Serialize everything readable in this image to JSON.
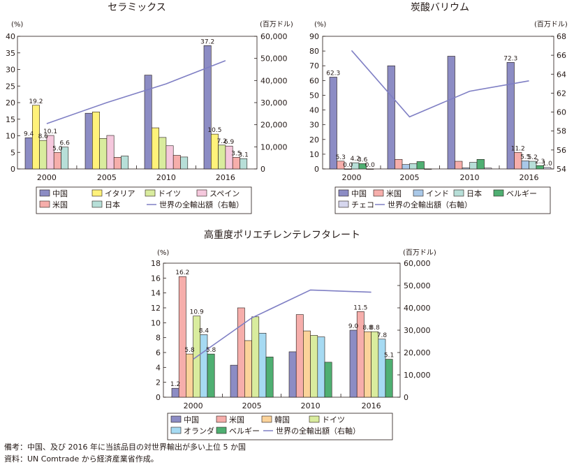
{
  "chart_data": [
    {
      "type": "bar",
      "title": "セラミックス",
      "ylabel_left": "(%)",
      "ylabel_right": "(百万ドル)",
      "ylim": [
        0,
        40
      ],
      "ylim_right": [
        0,
        60000
      ],
      "yticks": [
        "0",
        "5",
        "10",
        "15",
        "20",
        "25",
        "30",
        "35",
        "40"
      ],
      "yticks_right": [
        "0",
        "10,000",
        "20,000",
        "30,000",
        "40,000",
        "50,000",
        "60,000"
      ],
      "categories": [
        "2000",
        "2005",
        "2010",
        "2016"
      ],
      "series": [
        {
          "name": "中国",
          "color": "#8c8cc4",
          "values": [
            9.4,
            16.8,
            28.3,
            37.2
          ]
        },
        {
          "name": "イタリア",
          "color": "#fff27a",
          "values": [
            19.2,
            17.2,
            12.4,
            10.5
          ]
        },
        {
          "name": "ドイツ",
          "color": "#d9ec9e",
          "values": [
            8.6,
            9.2,
            9.5,
            7.2
          ]
        },
        {
          "name": "スペイン",
          "color": "#f5c8dd",
          "values": [
            10.1,
            10.1,
            7.0,
            6.9
          ]
        },
        {
          "name": "米国",
          "color": "#f6aeab",
          "values": [
            5.0,
            3.5,
            4.1,
            3.5
          ]
        },
        {
          "name": "日本",
          "color": "#b7dfd8",
          "values": [
            6.6,
            3.9,
            3.6,
            3.1
          ]
        }
      ],
      "line": {
        "name": "世界の全輸出額（右軸）",
        "color": "#7f7fc4",
        "values": [
          20500,
          30000,
          38500,
          49000
        ]
      },
      "data_labels": [
        {
          "series": 0,
          "index": 0,
          "text": "9.4"
        },
        {
          "series": 1,
          "index": 0,
          "text": "19.2"
        },
        {
          "series": 2,
          "index": 0,
          "text": "8.6"
        },
        {
          "series": 3,
          "index": 0,
          "text": "10.1"
        },
        {
          "series": 4,
          "index": 0,
          "text": "5.0"
        },
        {
          "series": 5,
          "index": 0,
          "text": "6.6"
        },
        {
          "series": 0,
          "index": 3,
          "text": "37.2"
        },
        {
          "series": 1,
          "index": 3,
          "text": "10.5"
        },
        {
          "series": 2,
          "index": 3,
          "text": "7.2"
        },
        {
          "series": 3,
          "index": 3,
          "text": "6.9"
        },
        {
          "series": 4,
          "index": 3,
          "text": "3.5"
        },
        {
          "series": 5,
          "index": 3,
          "text": "3.1"
        }
      ]
    },
    {
      "type": "bar",
      "title": "炭酸バリウム",
      "ylabel_left": "(%)",
      "ylabel_right": "(百万ドル)",
      "ylim": [
        0,
        90
      ],
      "ylim_right": [
        54,
        68
      ],
      "yticks": [
        "0",
        "10",
        "20",
        "30",
        "40",
        "50",
        "60",
        "70",
        "80",
        "90"
      ],
      "yticks_right": [
        "54",
        "56",
        "58",
        "60",
        "62",
        "64",
        "66",
        "68"
      ],
      "categories": [
        "2000",
        "2005",
        "2010",
        "2016"
      ],
      "series": [
        {
          "name": "中国",
          "color": "#8c8cc4",
          "values": [
            62.3,
            70.0,
            76.5,
            72.3
          ]
        },
        {
          "name": "米国",
          "color": "#f6aeab",
          "values": [
            5.3,
            6.5,
            5.2,
            11.2
          ]
        },
        {
          "name": "インド",
          "color": "#a9c8e8",
          "values": [
            0.0,
            3.0,
            0.7,
            5.5
          ]
        },
        {
          "name": "日本",
          "color": "#b7dfd8",
          "values": [
            4.2,
            3.6,
            4.5,
            5.2
          ]
        },
        {
          "name": "ベルギー",
          "color": "#4faf72",
          "values": [
            3.6,
            5.0,
            6.5,
            2.3
          ]
        },
        {
          "name": "チェコ",
          "color": "#d6d6ee",
          "values": [
            0.0,
            0.0,
            0.6,
            1.0
          ]
        }
      ],
      "line": {
        "name": "世界の全輸出額（右軸）",
        "color": "#7f7fc4",
        "values": [
          66.5,
          59.5,
          62.2,
          63.3
        ]
      },
      "data_labels": [
        {
          "series": 0,
          "index": 0,
          "text": "62.3"
        },
        {
          "series": 1,
          "index": 0,
          "text": "5.3"
        },
        {
          "series": 2,
          "index": 0,
          "text": "0.0"
        },
        {
          "series": 3,
          "index": 0,
          "text": "4.2"
        },
        {
          "series": 4,
          "index": 0,
          "text": "3.6"
        },
        {
          "series": 5,
          "index": 0,
          "text": "0.0"
        },
        {
          "series": 0,
          "index": 3,
          "text": "72.3"
        },
        {
          "series": 1,
          "index": 3,
          "text": "11.2"
        },
        {
          "series": 2,
          "index": 3,
          "text": "5.5"
        },
        {
          "series": 3,
          "index": 3,
          "text": "5.2"
        },
        {
          "series": 4,
          "index": 3,
          "text": "2.3"
        },
        {
          "series": 5,
          "index": 3,
          "text": "1.0"
        }
      ]
    },
    {
      "type": "bar",
      "title": "高重度ポリエチレンテレフタレート",
      "ylabel_left": "(%)",
      "ylabel_right": "(百万ドル)",
      "ylim": [
        0,
        18
      ],
      "ylim_right": [
        0,
        60000
      ],
      "yticks": [
        "0",
        "2",
        "4",
        "6",
        "8",
        "10",
        "12",
        "14",
        "16",
        "18"
      ],
      "yticks_right": [
        "0",
        "10,000",
        "20,000",
        "30,000",
        "40,000",
        "50,000",
        "60,000"
      ],
      "categories": [
        "2000",
        "2005",
        "2010",
        "2016"
      ],
      "series": [
        {
          "name": "中国",
          "color": "#8c8cc4",
          "values": [
            1.2,
            4.3,
            6.1,
            9.0
          ]
        },
        {
          "name": "米国",
          "color": "#f6aeab",
          "values": [
            16.2,
            12.0,
            11.1,
            11.5
          ]
        },
        {
          "name": "韓国",
          "color": "#fbd39a",
          "values": [
            5.8,
            7.6,
            8.9,
            8.8
          ]
        },
        {
          "name": "ドイツ",
          "color": "#d9ec9e",
          "values": [
            10.9,
            10.8,
            8.3,
            8.8
          ]
        },
        {
          "name": "オランダ",
          "color": "#a6daf2",
          "values": [
            8.4,
            8.6,
            8.1,
            7.8
          ]
        },
        {
          "name": "ベルギー",
          "color": "#4faf72",
          "values": [
            5.8,
            5.4,
            4.7,
            5.1
          ]
        }
      ],
      "line": {
        "name": "世界の全輸出額（右軸）",
        "color": "#7f7fc4",
        "values": [
          17000,
          35500,
          48000,
          47000
        ]
      },
      "data_labels": [
        {
          "series": 0,
          "index": 0,
          "text": "1.2"
        },
        {
          "series": 1,
          "index": 0,
          "text": "16.2"
        },
        {
          "series": 2,
          "index": 0,
          "text": "5.8"
        },
        {
          "series": 3,
          "index": 0,
          "text": "10.9"
        },
        {
          "series": 4,
          "index": 0,
          "text": "8.4"
        },
        {
          "series": 5,
          "index": 0,
          "text": "5.8"
        },
        {
          "series": 0,
          "index": 3,
          "text": "9.0"
        },
        {
          "series": 1,
          "index": 3,
          "text": "11.5"
        },
        {
          "series": 2,
          "index": 3,
          "text": "8.8"
        },
        {
          "series": 3,
          "index": 3,
          "text": "8.8"
        },
        {
          "series": 4,
          "index": 3,
          "text": "7.8"
        },
        {
          "series": 5,
          "index": 3,
          "text": "5.1"
        }
      ]
    }
  ],
  "notes": {
    "line1": "備考：中国、及び 2016 年に当該品目の対世界輸出が多い上位 5 か国",
    "line2": "資料：UN Comtrade から経済産業省作成。"
  }
}
